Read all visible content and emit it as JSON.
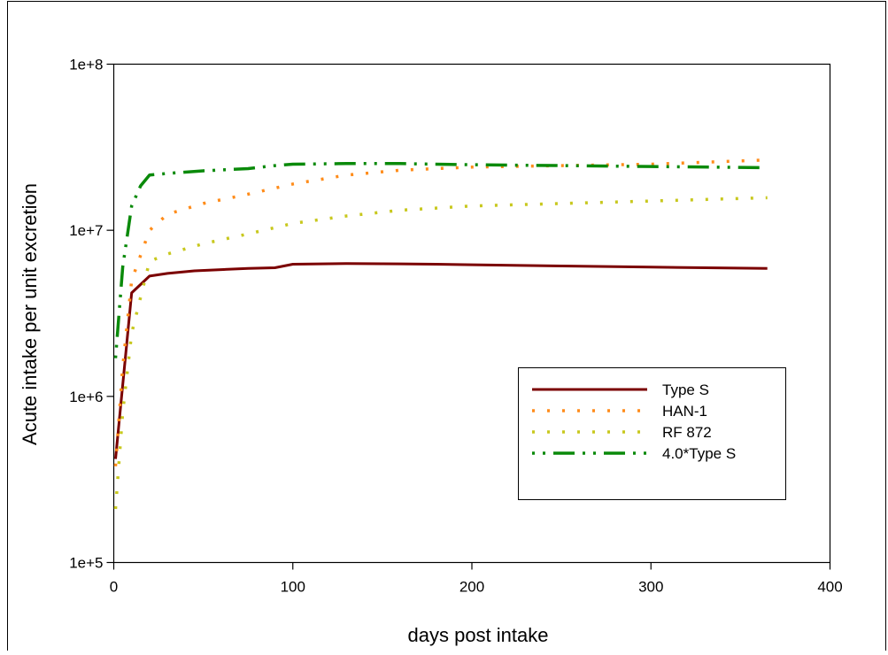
{
  "chart_data": {
    "type": "line",
    "title": "",
    "xlabel": "days post intake",
    "ylabel": "Acute intake per unit excretion",
    "xlim": [
      0,
      400
    ],
    "ylim": [
      100000,
      100000000
    ],
    "y_scale": "log",
    "grid": false,
    "legend_position": "lower-right",
    "x_ticks": [
      {
        "value": 0,
        "label": "0"
      },
      {
        "value": 100,
        "label": "100"
      },
      {
        "value": 200,
        "label": "200"
      },
      {
        "value": 300,
        "label": "300"
      },
      {
        "value": 400,
        "label": "400"
      }
    ],
    "y_ticks": [
      {
        "value": 100000,
        "label": "1e+5"
      },
      {
        "value": 1000000,
        "label": "1e+6"
      },
      {
        "value": 10000000,
        "label": "1e+7"
      },
      {
        "value": 100000000,
        "label": "1e+8"
      }
    ],
    "series": [
      {
        "name": "Type S",
        "color": "#7b0000",
        "dash": "solid",
        "x": [
          1,
          10,
          20,
          30,
          45,
          60,
          75,
          90,
          100,
          130,
          160,
          180,
          200,
          250,
          300,
          365
        ],
        "y": [
          420000,
          4200000,
          5300000,
          5500000,
          5700000,
          5800000,
          5900000,
          5950000,
          6250000,
          6300000,
          6280000,
          6250000,
          6200000,
          6100000,
          6000000,
          5900000
        ]
      },
      {
        "name": "HAN-1",
        "color": "#ff8c1a",
        "dash": "dot",
        "x": [
          1,
          5,
          10,
          20,
          30,
          50,
          75,
          100,
          130,
          160,
          180,
          200,
          250,
          300,
          365
        ],
        "y": [
          380000,
          1500000,
          5000000,
          10000000,
          12500000,
          14500000,
          16500000,
          19000000,
          21500000,
          23000000,
          23500000,
          24000000,
          24500000,
          25000000,
          26500000
        ]
      },
      {
        "name": "RF 872",
        "color": "#c8c81e",
        "dash": "dot",
        "x": [
          1,
          5,
          10,
          20,
          30,
          50,
          75,
          100,
          130,
          160,
          185,
          200,
          250,
          300,
          365
        ],
        "y": [
          210000,
          800000,
          2400000,
          6500000,
          7200000,
          8300000,
          9500000,
          11000000,
          12200000,
          13200000,
          13700000,
          14000000,
          14500000,
          15000000,
          15700000
        ]
      },
      {
        "name": "4.0*Type S",
        "color": "#0a8a0a",
        "dash": "dot-dash",
        "x": [
          1,
          5,
          10,
          15,
          20,
          30,
          50,
          75,
          90,
          100,
          130,
          160,
          180,
          200,
          250,
          300,
          365
        ],
        "y": [
          1700000,
          6000000,
          14000000,
          18500000,
          21500000,
          22000000,
          22800000,
          23500000,
          24500000,
          25000000,
          25200000,
          25200000,
          25000000,
          24800000,
          24500000,
          24200000,
          23800000
        ]
      }
    ]
  }
}
